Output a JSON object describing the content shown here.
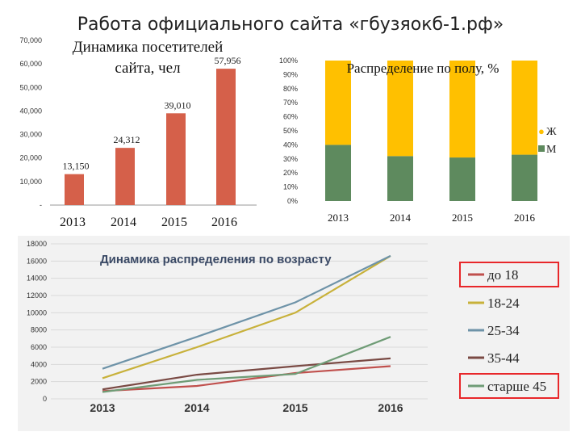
{
  "slide_title": "Работа официального сайта «гбузяокб-1.рф»",
  "chart_data": [
    {
      "type": "bar",
      "title": "Динамика посетителей сайта, чел",
      "categories": [
        "2013",
        "2014",
        "2015",
        "2016"
      ],
      "values": [
        13150,
        24312,
        39010,
        57956
      ],
      "value_labels": [
        "13,150",
        "24,312",
        "39,010",
        "57,956"
      ],
      "ylim": [
        0,
        70000
      ],
      "yticks": [
        0,
        10000,
        20000,
        30000,
        40000,
        50000,
        60000,
        70000
      ],
      "ytick_labels": [
        "-",
        "10,000",
        "20,000",
        "30,000",
        "40,000",
        "50,000",
        "60,000",
        "70,000"
      ],
      "color": "#d5604a"
    },
    {
      "type": "bar",
      "stacked": true,
      "title": "Распределение по полу, %",
      "categories": [
        "2013",
        "2014",
        "2015",
        "2016"
      ],
      "series": [
        {
          "name": "М",
          "values": [
            40,
            32,
            31,
            33
          ],
          "color": "#5e8a5e"
        },
        {
          "name": "Ж",
          "values": [
            60,
            68,
            69,
            67
          ],
          "color": "#ffc000"
        }
      ],
      "ylim": [
        0,
        100
      ],
      "ytick_labels": [
        "0%",
        "10%",
        "20%",
        "30%",
        "40%",
        "50%",
        "60%",
        "70%",
        "80%",
        "90%",
        "100%"
      ],
      "legend_labels": [
        "Ж",
        "М"
      ]
    },
    {
      "type": "line",
      "title": "Динамика распределения по возрасту",
      "x": [
        "2013",
        "2014",
        "2015",
        "2016"
      ],
      "ylim": [
        0,
        18000
      ],
      "yticks": [
        0,
        2000,
        4000,
        6000,
        8000,
        10000,
        12000,
        14000,
        16000,
        18000
      ],
      "series": [
        {
          "name": "до 18",
          "values": [
            900,
            1500,
            3000,
            3800
          ],
          "color": "#c0504d"
        },
        {
          "name": "18-24",
          "values": [
            2400,
            6000,
            10000,
            16600
          ],
          "color": "#c8b13a"
        },
        {
          "name": "25-34",
          "values": [
            3500,
            7200,
            11200,
            16600
          ],
          "color": "#6e93a8"
        },
        {
          "name": "35-44",
          "values": [
            1100,
            2800,
            3800,
            4700
          ],
          "color": "#7a4a44"
        },
        {
          "name": "старше 45",
          "values": [
            800,
            2200,
            2900,
            7200
          ],
          "color": "#6f9c76"
        }
      ],
      "highlighted_legend": [
        "до 18",
        "старше 45"
      ],
      "highlight_color": "#e8272a"
    }
  ]
}
